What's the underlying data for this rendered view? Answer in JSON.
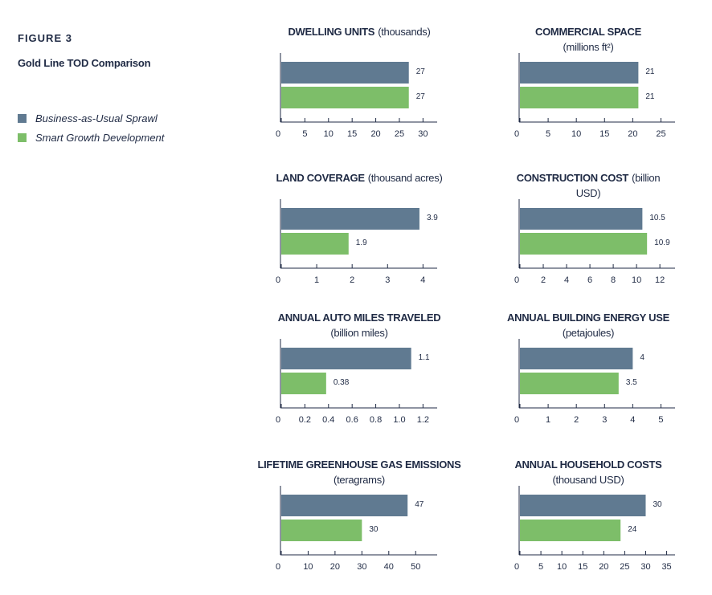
{
  "figure": {
    "label": "FIGURE 3",
    "title": "Gold Line TOD Comparison"
  },
  "legend": [
    {
      "name": "Business-as-Usual Sprawl",
      "color": "#607a91"
    },
    {
      "name": "Smart Growth Development",
      "color": "#7dbe69"
    }
  ],
  "chart_data": [
    {
      "type": "bar",
      "orientation": "horizontal",
      "title": "DWELLING UNITS",
      "unit_line1": "(thousands)",
      "unit_line2": "",
      "series": [
        {
          "name": "Business-as-Usual Sprawl",
          "value": 27,
          "label": "27"
        },
        {
          "name": "Smart Growth Development",
          "value": 27,
          "label": "27"
        }
      ],
      "xlim": [
        0,
        33
      ],
      "ticks": [
        0,
        5,
        10,
        15,
        20,
        25,
        30
      ],
      "tick_labels": [
        "0",
        "5",
        "10",
        "15",
        "20",
        "25",
        "30"
      ]
    },
    {
      "type": "bar",
      "orientation": "horizontal",
      "title": "COMMERCIAL SPACE",
      "unit_line1": "",
      "unit_line2": "(millions ft²)",
      "series": [
        {
          "name": "Business-as-Usual Sprawl",
          "value": 21,
          "label": "21"
        },
        {
          "name": "Smart Growth Development",
          "value": 21,
          "label": "21"
        }
      ],
      "xlim": [
        0,
        27.5
      ],
      "ticks": [
        0,
        5,
        10,
        15,
        20,
        25
      ],
      "tick_labels": [
        "0",
        "5",
        "10",
        "15",
        "20",
        "25"
      ]
    },
    {
      "type": "bar",
      "orientation": "horizontal",
      "title": "LAND COVERAGE",
      "unit_line1": "(thousand acres)",
      "unit_line2": "",
      "series": [
        {
          "name": "Business-as-Usual Sprawl",
          "value": 3.9,
          "label": "3.9"
        },
        {
          "name": "Smart Growth Development",
          "value": 1.9,
          "label": "1.9"
        }
      ],
      "xlim": [
        0,
        4.4
      ],
      "ticks": [
        0,
        1,
        2,
        3,
        4
      ],
      "tick_labels": [
        "0",
        "1",
        "2",
        "3",
        "4"
      ]
    },
    {
      "type": "bar",
      "orientation": "horizontal",
      "title": "CONSTRUCTION COST",
      "unit_line1": "(billion",
      "unit_line2": "USD)",
      "series": [
        {
          "name": "Business-as-Usual Sprawl",
          "value": 10.5,
          "label": "10.5"
        },
        {
          "name": "Smart Growth Development",
          "value": 10.9,
          "label": "10.9"
        }
      ],
      "xlim": [
        0,
        13.3
      ],
      "ticks": [
        0,
        2,
        4,
        6,
        8,
        10,
        12
      ],
      "tick_labels": [
        "0",
        "2",
        "4",
        "6",
        "8",
        "10",
        "12"
      ]
    },
    {
      "type": "bar",
      "orientation": "horizontal",
      "title": "ANNUAL AUTO MILES TRAVELED",
      "unit_line1": "",
      "unit_line2": "(billion miles)",
      "series": [
        {
          "name": "Business-as-Usual Sprawl",
          "value": 1.1,
          "label": "1.1"
        },
        {
          "name": "Smart Growth Development",
          "value": 0.38,
          "label": "0.38"
        }
      ],
      "xlim": [
        0,
        1.32
      ],
      "ticks": [
        0,
        0.2,
        0.4,
        0.6,
        0.8,
        1.0,
        1.2
      ],
      "tick_labels": [
        "0",
        "0.2",
        "0.4",
        "0.6",
        "0.8",
        "1.0",
        "1.2"
      ]
    },
    {
      "type": "bar",
      "orientation": "horizontal",
      "title": "ANNUAL BUILDING ENERGY USE",
      "unit_line1": "",
      "unit_line2": "(petajoules)",
      "series": [
        {
          "name": "Business-as-Usual Sprawl",
          "value": 4,
          "label": "4"
        },
        {
          "name": "Smart Growth Development",
          "value": 3.5,
          "label": "3.5"
        }
      ],
      "xlim": [
        0,
        5.5
      ],
      "ticks": [
        0,
        1,
        2,
        3,
        4,
        5
      ],
      "tick_labels": [
        "0",
        "1",
        "2",
        "3",
        "4",
        "5"
      ]
    },
    {
      "type": "bar",
      "orientation": "horizontal",
      "title": "LIFETIME GREENHOUSE GAS EMISSIONS",
      "unit_line1": "",
      "unit_line2": "(teragrams)",
      "series": [
        {
          "name": "Business-as-Usual Sprawl",
          "value": 47,
          "label": "47"
        },
        {
          "name": "Smart Growth Development",
          "value": 30,
          "label": "30"
        }
      ],
      "xlim": [
        0,
        58
      ],
      "ticks": [
        0,
        10,
        20,
        30,
        40,
        50
      ],
      "tick_labels": [
        "0",
        "10",
        "20",
        "30",
        "40",
        "50"
      ]
    },
    {
      "type": "bar",
      "orientation": "horizontal",
      "title": "ANNUAL HOUSEHOLD COSTS",
      "unit_line1": "",
      "unit_line2": "(thousand USD)",
      "series": [
        {
          "name": "Business-as-Usual Sprawl",
          "value": 30,
          "label": "30"
        },
        {
          "name": "Smart Growth Development",
          "value": 24,
          "label": "24"
        }
      ],
      "xlim": [
        0,
        37
      ],
      "ticks": [
        0,
        5,
        10,
        15,
        20,
        25,
        30,
        35
      ],
      "tick_labels": [
        "0",
        "5",
        "10",
        "15",
        "20",
        "25",
        "30",
        "35"
      ]
    }
  ]
}
